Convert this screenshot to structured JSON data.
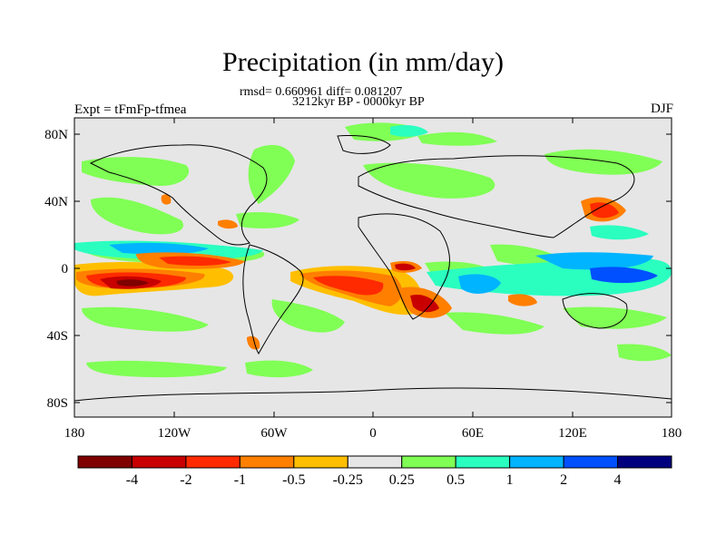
{
  "title": "Precipitation (in mm/day)",
  "stats": "rmsd= 0.660961 diff= 0.081207",
  "period": "3212kyr BP - 0000kyr BP",
  "experiment": "Expt = tFmFp-tfmea",
  "season": "DJF",
  "map": {
    "lat_ticks": [
      "80N",
      "40N",
      "0",
      "40S",
      "80S"
    ],
    "lon_ticks": [
      "180",
      "120W",
      "60W",
      "0",
      "60E",
      "120E",
      "180"
    ]
  },
  "colorbar": {
    "colors": [
      "#7f0000",
      "#c80000",
      "#ff2a00",
      "#ff7f00",
      "#ffbf00",
      "#e6e6e6",
      "#80ff55",
      "#2affc0",
      "#00b4ff",
      "#0050ff",
      "#00007f"
    ],
    "labels": [
      "-4",
      "-2",
      "-1",
      "-0.5",
      "-0.25",
      "0.25",
      "0.5",
      "1",
      "2",
      "4"
    ]
  }
}
